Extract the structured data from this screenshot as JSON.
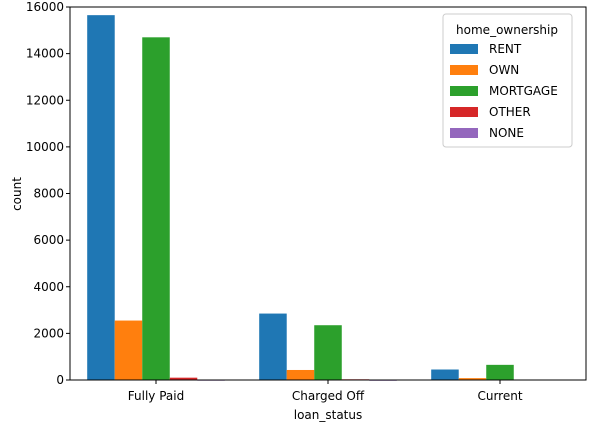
{
  "chart_data": {
    "type": "bar",
    "title": "",
    "xlabel": "loan_status",
    "ylabel": "count",
    "categories": [
      "Fully Paid",
      "Charged Off",
      "Current"
    ],
    "ylim": [
      0,
      16000
    ],
    "yticks": [
      0,
      2000,
      4000,
      6000,
      8000,
      10000,
      12000,
      14000,
      16000
    ],
    "grid": false,
    "legend": {
      "title": "home_ownership",
      "placement": "top-right"
    },
    "series": [
      {
        "name": "RENT",
        "color": "#1f77b4",
        "values": [
          15650,
          2850,
          450
        ]
      },
      {
        "name": "OWN",
        "color": "#ff7f0e",
        "values": [
          2550,
          430,
          80
        ]
      },
      {
        "name": "MORTGAGE",
        "color": "#2ca02c",
        "values": [
          14700,
          2350,
          650
        ]
      },
      {
        "name": "OTHER",
        "color": "#d62728",
        "values": [
          100,
          30,
          0
        ]
      },
      {
        "name": "NONE",
        "color": "#9467bd",
        "values": [
          5,
          2,
          0
        ]
      }
    ]
  }
}
